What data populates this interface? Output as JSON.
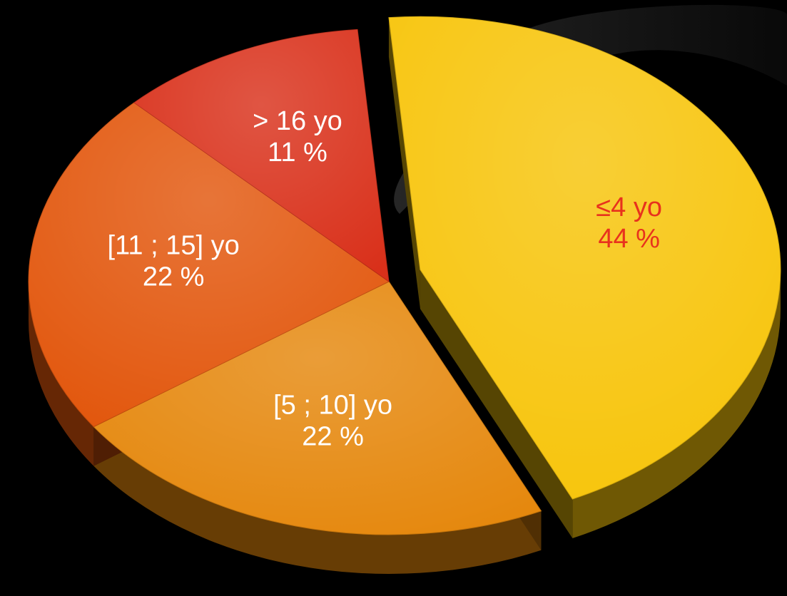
{
  "chart_data": {
    "type": "pie",
    "title": "",
    "style": "3d-exploded",
    "slices": [
      {
        "category": "≤4 yo",
        "value": 44,
        "value_label": "44 %",
        "color": "#f7c409",
        "label_color": "#e8321d",
        "exploded": true
      },
      {
        "category": "[5 ; 10] yo",
        "value": 22,
        "value_label": "22 %",
        "color": "#e5870c",
        "label_color": "#ffffff",
        "exploded": false
      },
      {
        "category": "[11 ; 15] yo",
        "value": 22,
        "value_label": "22 %",
        "color": "#e2560c",
        "label_color": "#ffffff",
        "exploded": false
      },
      {
        "category": "> 16 yo",
        "value": 11,
        "value_label": "11 %",
        "color": "#d9301a",
        "label_color": "#ffffff",
        "exploded": false
      }
    ],
    "background_color": "#000000",
    "legend": "none"
  }
}
